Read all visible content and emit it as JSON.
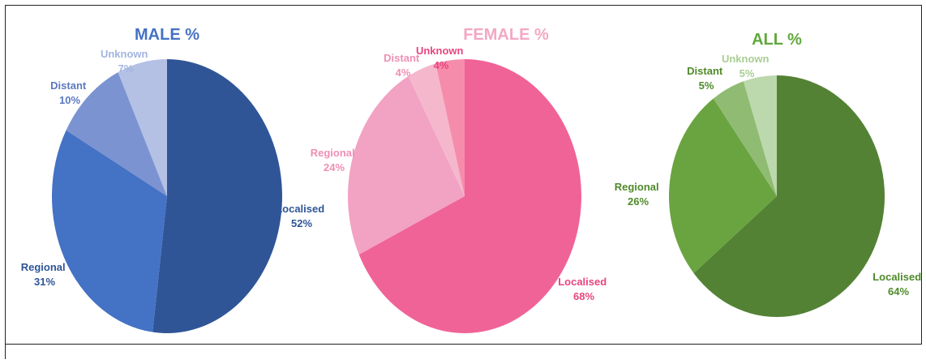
{
  "chart_data": [
    {
      "type": "pie",
      "title": "MALE %",
      "title_color": "#4472c4",
      "slices": [
        {
          "label": "Localised",
          "value": 52,
          "display": "52%",
          "color": "#2f5597",
          "label_color": "#2f5597"
        },
        {
          "label": "Regional",
          "value": 31,
          "display": "31%",
          "color": "#4472c4",
          "label_color": "#2f5597"
        },
        {
          "label": "Distant",
          "value": 10,
          "display": "10%",
          "color": "#7b93d1",
          "label_color": "#5b78c0"
        },
        {
          "label": "Unknown",
          "value": 7,
          "display": "7%",
          "color": "#b4c0e4",
          "label_color": "#a3b4e0"
        }
      ]
    },
    {
      "type": "pie",
      "title": "FEMALE %",
      "title_color": "#f4a7c4",
      "slices": [
        {
          "label": "Localised",
          "value": 68,
          "display": "68%",
          "color": "#f06397",
          "label_color": "#e8457f"
        },
        {
          "label": "Regional",
          "value": 24,
          "display": "24%",
          "color": "#f2a2c2",
          "label_color": "#ef8fb4"
        },
        {
          "label": "Distant",
          "value": 4,
          "display": "4%",
          "color": "#f5b7cc",
          "label_color": "#ef8fb4"
        },
        {
          "label": "Unknown",
          "value": 4,
          "display": "4%",
          "color": "#f68cab",
          "label_color": "#e8457f"
        }
      ]
    },
    {
      "type": "pie",
      "title": "ALL %",
      "title_color": "#62a83c",
      "slices": [
        {
          "label": "Localised",
          "value": 64,
          "display": "64%",
          "color": "#548235",
          "label_color": "#4f8a2a"
        },
        {
          "label": "Regional",
          "value": 26,
          "display": "26%",
          "color": "#6aa440",
          "label_color": "#4f8a2a"
        },
        {
          "label": "Distant",
          "value": 5,
          "display": "5%",
          "color": "#8fbb72",
          "label_color": "#4f8a2a"
        },
        {
          "label": "Unknown",
          "value": 5,
          "display": "5%",
          "color": "#bcd8ad",
          "label_color": "#a9cf93"
        }
      ]
    }
  ]
}
